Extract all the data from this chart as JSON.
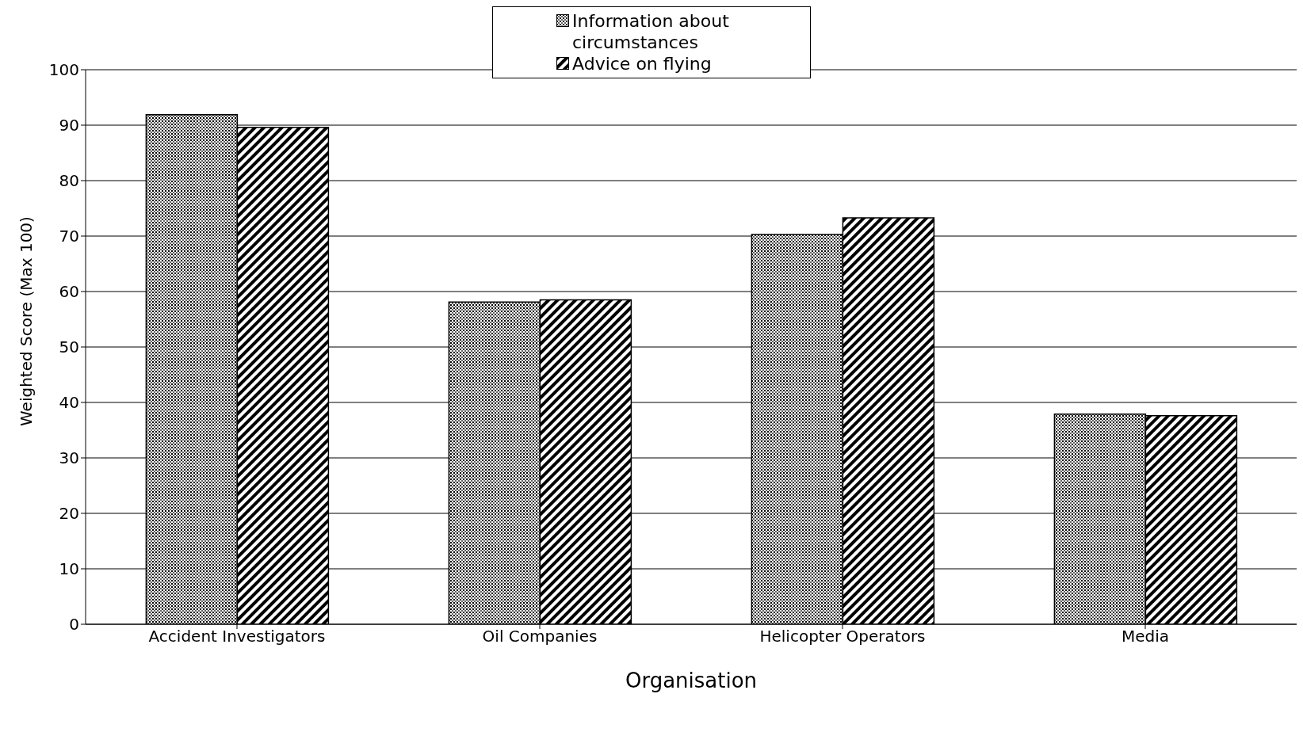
{
  "chart_data": {
    "type": "bar",
    "xlabel": "Organisation",
    "ylabel": "Weighted Score (Max 100)",
    "categories": [
      "Accident Investigators",
      "Oil Companies",
      "Helicopter Operators",
      "Media"
    ],
    "series": [
      {
        "name": "Information about circumstances",
        "color": "#000000",
        "values": [
          91.9,
          58.1,
          70.3,
          37.9
        ]
      },
      {
        "name": "Advice on flying",
        "color": "#000000",
        "values": [
          89.6,
          58.5,
          73.3,
          37.6
        ]
      }
    ],
    "ylim": [
      0,
      100
    ],
    "yticks": [
      0,
      10,
      20,
      30,
      40,
      50,
      60,
      70,
      80,
      90,
      100
    ],
    "grid": "y",
    "legend": "top"
  }
}
